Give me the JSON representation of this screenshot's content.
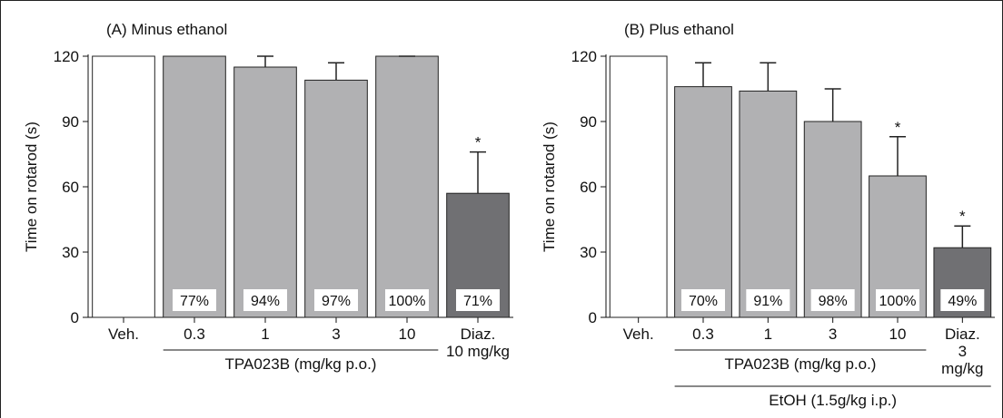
{
  "chart_data": [
    {
      "type": "bar",
      "title": "(A) Minus ethanol",
      "y_label": "Time on rotarod (s)",
      "categories": [
        "Veh.",
        "0.3",
        "1",
        "3",
        "10",
        "Diaz.\n10 mg/kg"
      ],
      "values": [
        120,
        120,
        115,
        109,
        120,
        57
      ],
      "errors": [
        null,
        null,
        5,
        8,
        0,
        19
      ],
      "colors": [
        "#ffffff",
        "#b1b1b3",
        "#b1b1b3",
        "#b1b1b3",
        "#b1b1b3",
        "#707073"
      ],
      "inset_labels": [
        null,
        "77%",
        "94%",
        "97%",
        "100%",
        "71%"
      ],
      "significance": [
        null,
        null,
        null,
        null,
        null,
        "*"
      ],
      "group_labels": [
        "TPA023B (mg/kg p.o.)"
      ],
      "ylim": [
        0,
        120
      ],
      "yticks": [
        0,
        30,
        60,
        90,
        120
      ]
    },
    {
      "type": "bar",
      "title": "(B) Plus ethanol",
      "y_label": "Time on rotarod (s)",
      "categories": [
        "Veh.",
        "0.3",
        "1",
        "3",
        "10",
        "Diaz.\n3 mg/kg"
      ],
      "values": [
        120,
        106,
        104,
        90,
        65,
        32
      ],
      "errors": [
        null,
        11,
        13,
        15,
        18,
        10
      ],
      "colors": [
        "#ffffff",
        "#b1b1b3",
        "#b1b1b3",
        "#b1b1b3",
        "#b1b1b3",
        "#707073"
      ],
      "inset_labels": [
        null,
        "70%",
        "91%",
        "98%",
        "100%",
        "49%"
      ],
      "significance": [
        null,
        null,
        null,
        null,
        "*",
        "*"
      ],
      "group_labels": [
        "TPA023B (mg/kg p.o.)",
        "EtOH (1.5g/kg i.p.)"
      ],
      "ylim": [
        0,
        120
      ],
      "yticks": [
        0,
        30,
        60,
        90,
        120
      ]
    }
  ]
}
